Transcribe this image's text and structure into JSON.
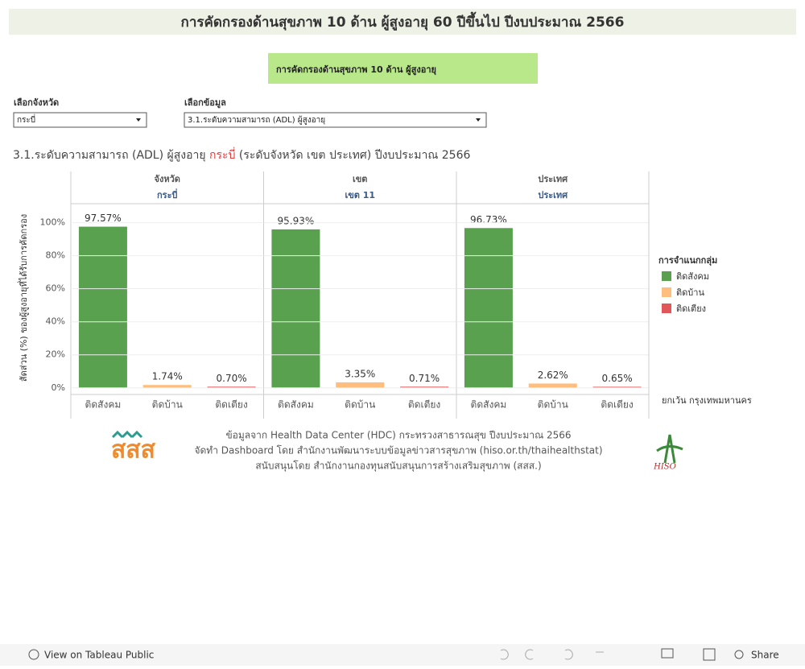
{
  "header": {
    "title": "การคัดกรองด้านสุขภาพ 10 ด้าน ผู้สูงอายุ 60 ปีขึ้นไป ปีงบประมาณ 2566",
    "tab": "การคัดกรองด้านสุขภาพ 10 ด้าน ผู้สูงอายุ"
  },
  "filters": [
    {
      "label": "เลือกจังหวัด",
      "value": "กระบี่"
    },
    {
      "label": "เลือกข้อมูล",
      "value": "3.1.ระดับความสามารถ (ADL) ผู้สูงอายุ"
    }
  ],
  "subtitle": {
    "prefix": "3.1.ระดับความสามารถ (ADL) ผู้สูงอายุ",
    "highlight": "กระบี่",
    "suffix": "(ระดับจังหวัด เขต ประเทศ) ปีงบประมาณ 2566"
  },
  "y_label": "สัดส่วน (%) ของผู้สูงอายุที่ได้รับการคัดกรอง",
  "chart_data": [
    {
      "type": "bar",
      "panel_title": "จังหวัด",
      "panel_subtitle": "กระบี่",
      "categories": [
        "ติดสังคม",
        "ติดบ้าน",
        "ติดเตียง"
      ],
      "values": [
        97.57,
        1.74,
        0.7
      ],
      "value_labels": [
        "97.57%",
        "1.74%",
        "0.70%"
      ],
      "ylim": [
        -4,
        111
      ],
      "yticks": [
        {
          "value": 0,
          "label": "0%"
        },
        {
          "value": 20,
          "label": "20%"
        },
        {
          "value": 40,
          "label": "40%"
        },
        {
          "value": 60,
          "label": "60%"
        },
        {
          "value": 80,
          "label": "80%"
        },
        {
          "value": 100,
          "label": "100%"
        }
      ]
    },
    {
      "type": "bar",
      "panel_title": "เขต",
      "panel_subtitle": "เขต 11",
      "categories": [
        "ติดสังคม",
        "ติดบ้าน",
        "ติดเตียง"
      ],
      "values": [
        95.93,
        3.35,
        0.71
      ],
      "value_labels": [
        "95.93%",
        "3.35%",
        "0.71%"
      ],
      "ylim": [
        -4,
        111
      ],
      "yticks": [
        0,
        20,
        40,
        60,
        80,
        100
      ]
    },
    {
      "type": "bar",
      "panel_title": "ประเทศ",
      "panel_subtitle": "ประเทศ",
      "categories": [
        "ติดสังคม",
        "ติดบ้าน",
        "ติดเตียง"
      ],
      "values": [
        96.73,
        2.62,
        0.65
      ],
      "value_labels": [
        "96.73%",
        "2.62%",
        "0.65%"
      ],
      "ylim": [
        -4,
        111
      ],
      "yticks": [
        0,
        20,
        40,
        60,
        80,
        100
      ]
    }
  ],
  "legend": {
    "title": "การจำแนกกลุ่ม",
    "names": [
      "ติดสังคม",
      "ติดบ้าน",
      "ติดเตียง"
    ],
    "colors": [
      "#59a14f",
      "#ffbe7d",
      "#e15759"
    ]
  },
  "note": "ยกเว้น กรุงเทพมหานคร",
  "footer": [
    "ข้อมูลจาก Health Data Center (HDC) กระทรวงสาธารณสุข ปีงบประมาณ 2566",
    "จัดทำ Dashboard โดย สำนักงานพัฒนาระบบข้อมูลข่าวสารสุขภาพ (hiso.or.th/thaihealthstat)",
    "สนับสนุนโดย สำนักงานกองทุนสนับสนุนการสร้างเสริมสุขภาพ (สสส.)"
  ],
  "logos": {
    "left": "สสส",
    "right": "HISO"
  },
  "toolbar": {
    "view": "View on Tableau Public",
    "share": "Share"
  }
}
